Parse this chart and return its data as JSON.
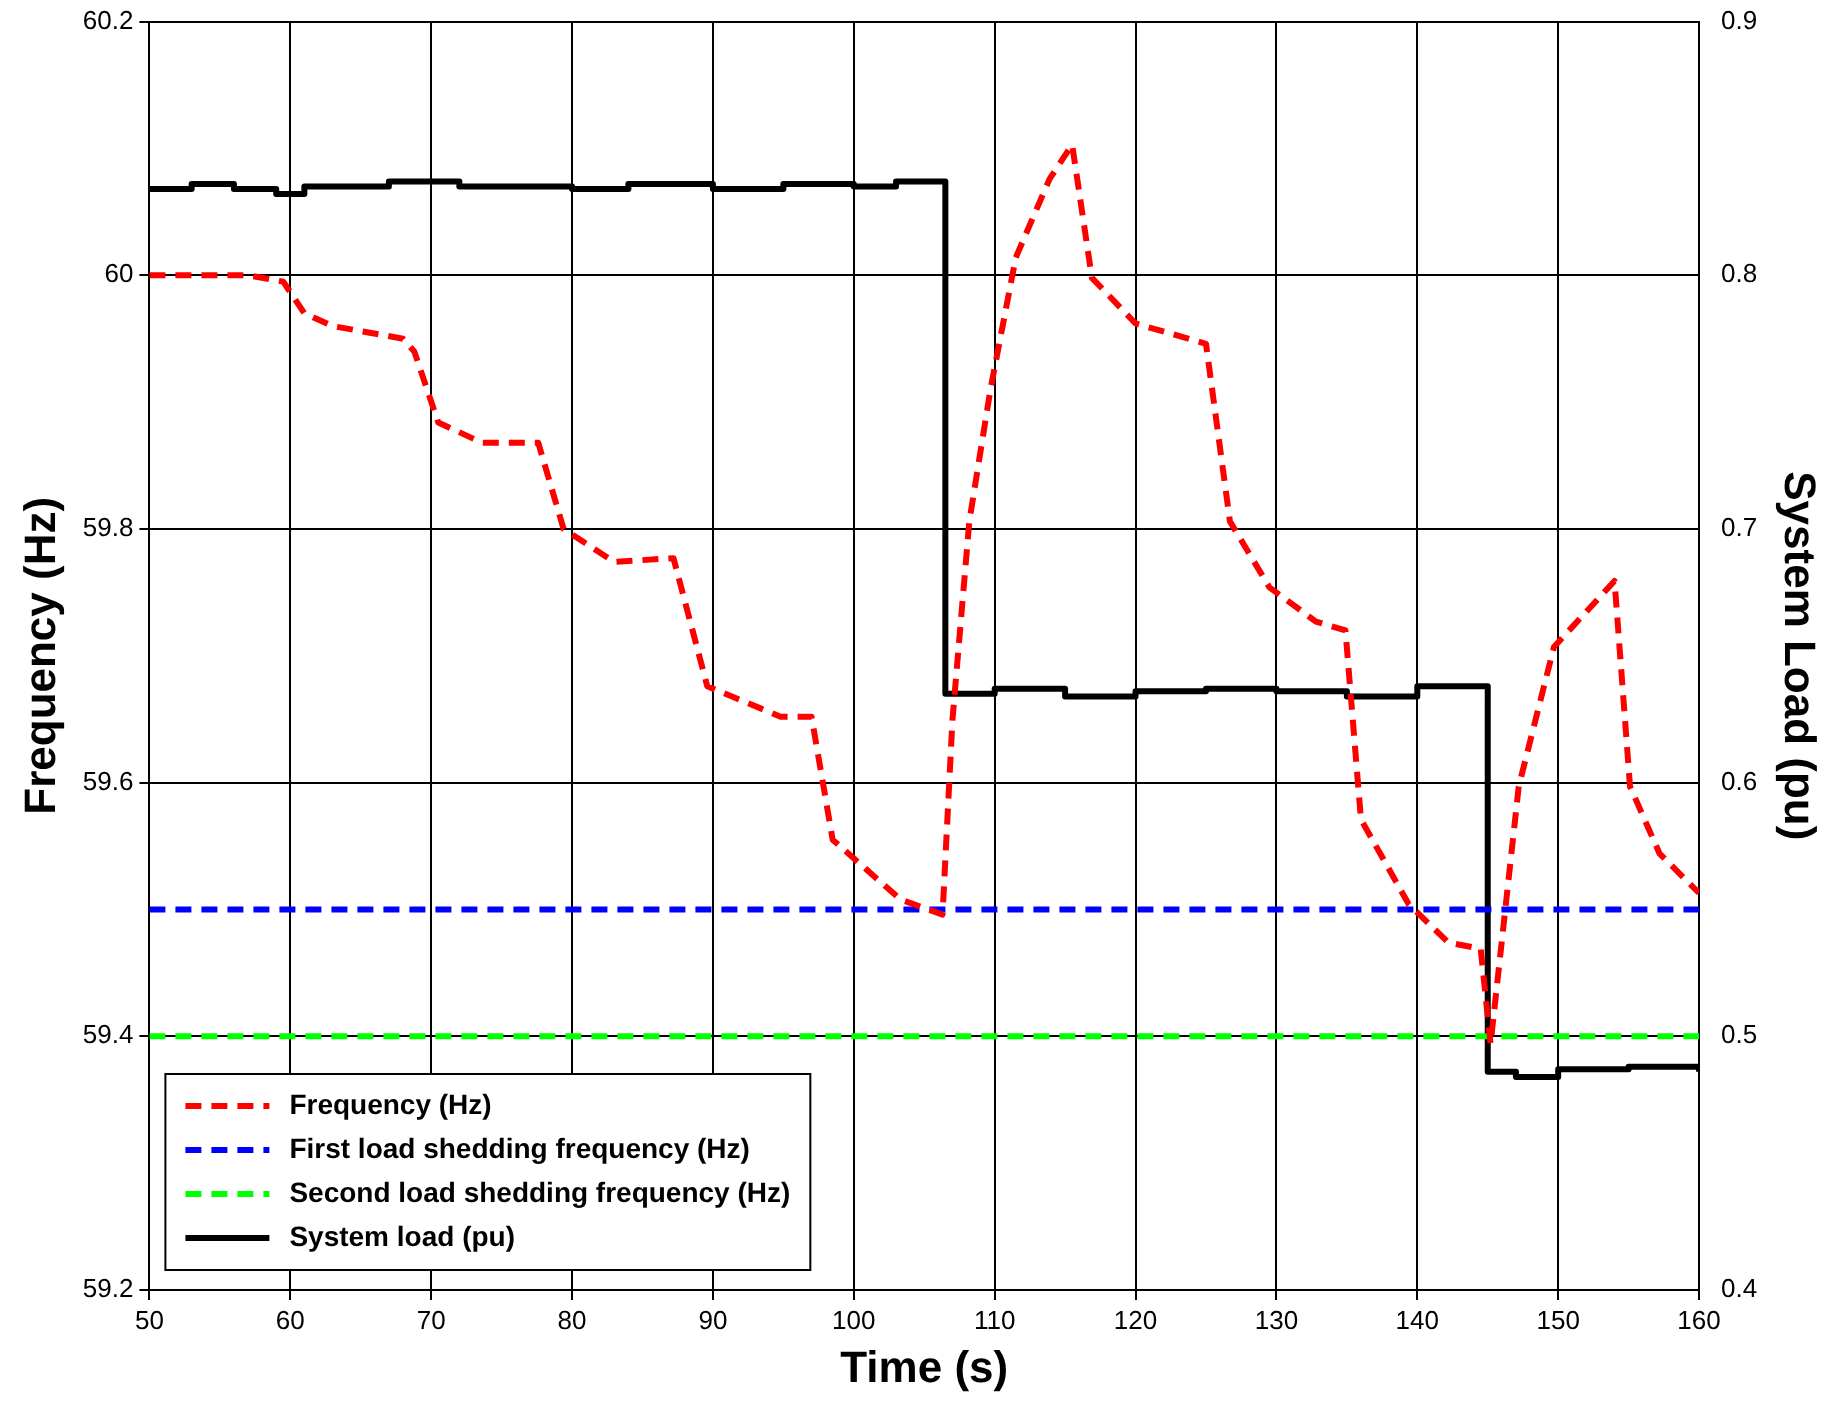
{
  "chart_data": {
    "type": "line",
    "xlabel": "Time (s)",
    "ylabel": "Frequency (Hz)",
    "y2label": "System Load (pu)",
    "xlim": [
      50,
      160
    ],
    "xticks": [
      50,
      60,
      70,
      80,
      90,
      100,
      110,
      120,
      130,
      140,
      150,
      160
    ],
    "ylim": [
      59.2,
      60.2
    ],
    "yticks": [
      59.2,
      59.4,
      59.6,
      59.8,
      60,
      60.2
    ],
    "y2lim": [
      0.4,
      0.9
    ],
    "y2ticks": [
      0.4,
      0.5,
      0.6,
      0.7,
      0.8,
      0.9
    ],
    "grid": true,
    "legend": "bottom left",
    "marker": "none",
    "series": [
      {
        "name": "Frequency (Hz)",
        "color": "#ff0000",
        "line_style": "dashed",
        "x": [
          50,
          57,
          59.5,
          61,
          63,
          68,
          68.8,
          70.5,
          73.6,
          77.6,
          79.4,
          83,
          87.2,
          89.6,
          94.8,
          97,
          98.5,
          103.3,
          106.3,
          107,
          108.2,
          109.7,
          111.5,
          113.9,
          115.5,
          116.9,
          120,
          125,
          126.7,
          129.5,
          132.8,
          134.9,
          136,
          139.4,
          142.2,
          144.5,
          145.2,
          147.2,
          149.7,
          154,
          155.1,
          157.2,
          160
        ],
        "values": [
          60.0,
          60.0,
          59.995,
          59.97,
          59.96,
          59.95,
          59.94,
          59.884,
          59.868,
          59.868,
          59.8,
          59.774,
          59.777,
          59.676,
          59.652,
          59.652,
          59.555,
          59.508,
          59.496,
          59.649,
          59.806,
          59.91,
          60.014,
          60.076,
          60.103,
          59.998,
          59.962,
          59.946,
          59.806,
          59.754,
          59.727,
          59.72,
          59.571,
          59.504,
          59.474,
          59.469,
          59.394,
          59.597,
          59.707,
          59.759,
          59.597,
          59.544,
          59.513
        ]
      },
      {
        "name": "First load shedding frequency (Hz)",
        "color": "#0000ff",
        "line_style": "dashed",
        "x": [
          50,
          160
        ],
        "values": [
          59.5,
          59.5
        ]
      },
      {
        "name": "Second load shedding frequency (Hz)",
        "color": "#00ff00",
        "line_style": "dashed",
        "x": [
          50,
          160
        ],
        "values": [
          59.4,
          59.4
        ]
      },
      {
        "name": "System load (pu)",
        "color": "#000000",
        "type": "step",
        "axis": "y2",
        "line_style": "solid",
        "x": [
          50,
          53,
          56,
          59,
          61,
          67,
          72,
          80,
          84,
          90,
          95,
          100,
          103,
          106.5,
          110,
          115,
          120,
          125,
          130,
          135,
          140,
          145,
          147,
          150,
          155,
          160
        ],
        "values": [
          0.834,
          0.836,
          0.834,
          0.832,
          0.835,
          0.837,
          0.835,
          0.834,
          0.836,
          0.834,
          0.836,
          0.835,
          0.837,
          0.635,
          0.637,
          0.634,
          0.636,
          0.637,
          0.636,
          0.634,
          0.638,
          0.486,
          0.484,
          0.487,
          0.488,
          0.486
        ]
      }
    ]
  }
}
